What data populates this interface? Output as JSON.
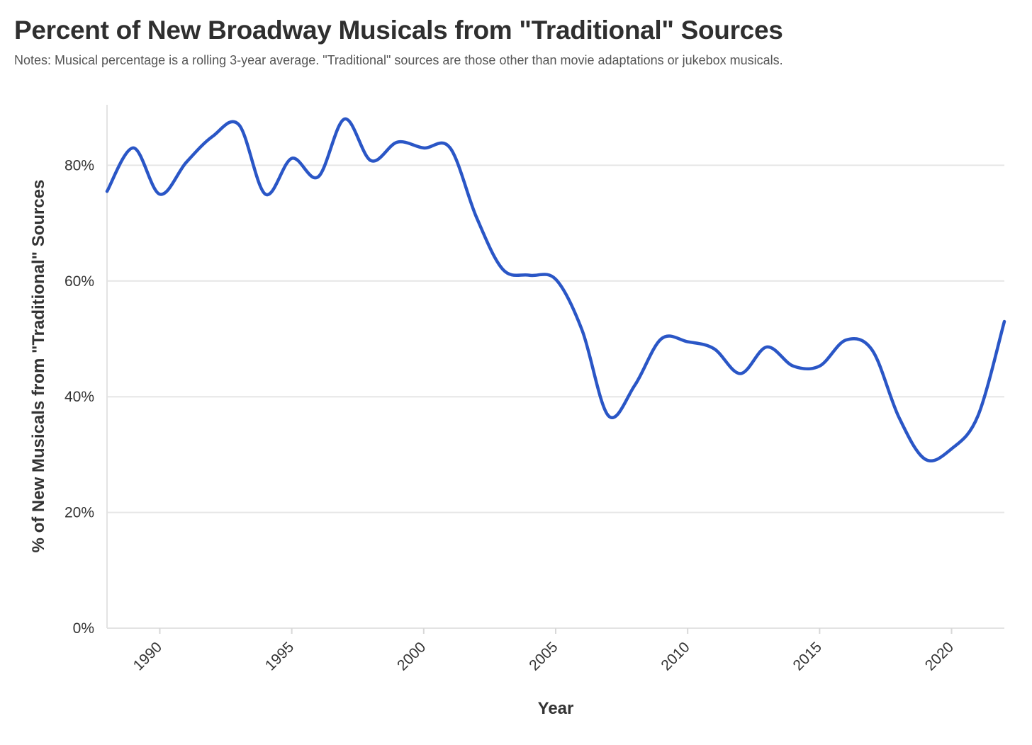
{
  "chart_data": {
    "type": "line",
    "title": "Percent of New Broadway Musicals from \"Traditional\" Sources",
    "subtitle": "Notes: Musical percentage is a rolling 3-year average. \"Traditional\" sources are those other than movie adaptations or jukebox musicals.",
    "xlabel": "Year",
    "ylabel": "% of New Musicals from \"Traditional\" Sources",
    "xlim": [
      1988,
      2022
    ],
    "ylim": [
      0,
      90
    ],
    "x_ticks": [
      1990,
      1995,
      2000,
      2005,
      2010,
      2015,
      2020
    ],
    "x_tick_labels": [
      "1990",
      "1995",
      "2000",
      "2005",
      "2010",
      "2015",
      "2020"
    ],
    "y_ticks": [
      0,
      20,
      40,
      60,
      80
    ],
    "y_tick_labels": [
      "0%",
      "20%",
      "40%",
      "60%",
      "80%"
    ],
    "grid": "horizontal",
    "line_color": "#2a56c6",
    "series": [
      {
        "x": [
          1988,
          1989,
          1990,
          1991,
          1992,
          1993,
          1994,
          1995,
          1996,
          1997,
          1998,
          1999,
          2000,
          2001,
          2002,
          2003,
          2004,
          2005,
          2006,
          2007,
          2008,
          2009,
          2010,
          2011,
          2012,
          2013,
          2014,
          2015,
          2016,
          2017,
          2018,
          2019,
          2020,
          2021,
          2022
        ],
        "values": [
          75.5,
          83,
          75,
          80.5,
          85,
          87,
          75,
          81.2,
          78,
          88,
          80.8,
          84,
          83,
          83,
          71,
          62,
          61,
          60.3,
          51.5,
          36.7,
          42,
          50,
          49.5,
          48.3,
          44,
          48.6,
          45.3,
          45.3,
          49.8,
          48,
          36.5,
          29.2,
          31,
          36.7,
          53
        ]
      }
    ]
  }
}
